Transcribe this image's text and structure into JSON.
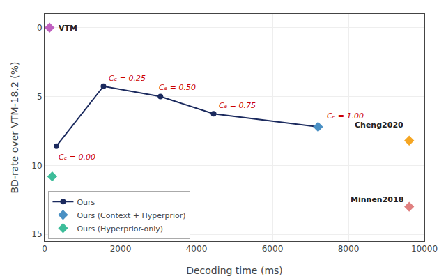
{
  "chart_data": {
    "type": "line",
    "xlabel": "Decoding time (ms)",
    "ylabel": "BD-rate over VTM-18.2 (%)",
    "xlim": [
      0,
      10000
    ],
    "ylim": [
      15.5,
      -1.0
    ],
    "xticks": [
      0,
      2000,
      4000,
      6000,
      8000,
      10000
    ],
    "yticks": [
      0,
      5,
      10,
      15
    ],
    "grid": true,
    "legend": "lower left",
    "series": [
      {
        "name": "Ours",
        "type": "line",
        "color": "#1b2a5e",
        "marker": "circle",
        "line_style": "solid",
        "x": [
          310,
          1550,
          3050,
          4450,
          7200
        ],
        "values": [
          8.6,
          4.25,
          5.0,
          6.25,
          7.2
        ]
      },
      {
        "name": "Ours (Context + Hyperprior)",
        "type": "scatter",
        "color": "#4a90c4",
        "marker": "diamond",
        "x": [
          7200
        ],
        "values": [
          7.2
        ]
      },
      {
        "name": "Ours (Hyperprior-only)",
        "type": "scatter",
        "color": "#3dbd9a",
        "marker": "diamond",
        "x": [
          200
        ],
        "values": [
          10.8
        ]
      },
      {
        "type": "scatter",
        "color": "#c060c0",
        "marker": "diamond",
        "x": [
          130
        ],
        "values": [
          0.0
        ]
      },
      {
        "type": "scatter",
        "color": "#f5a623",
        "marker": "diamond",
        "x": [
          9600
        ],
        "values": [
          8.2
        ]
      },
      {
        "type": "scatter",
        "color": "#e08080",
        "marker": "diamond",
        "x": [
          9600
        ],
        "values": [
          13.0
        ]
      }
    ],
    "annotations": [
      {
        "text": "VTM",
        "x": 130,
        "y": 0.0
      },
      {
        "text": "Cheng2020",
        "x": 9600,
        "y": 8.2
      },
      {
        "text": "Minnen2018",
        "x": 9600,
        "y": 13.0
      },
      {
        "text": "Cₑ = 0.00",
        "x": 310,
        "y": 8.6,
        "color": "#cc0000"
      },
      {
        "text": "Cₑ = 0.25",
        "x": 1550,
        "y": 4.25,
        "color": "#cc0000"
      },
      {
        "text": "Cₑ = 0.50",
        "x": 3050,
        "y": 5.0,
        "color": "#cc0000"
      },
      {
        "text": "Cₑ = 0.75",
        "x": 4450,
        "y": 6.25,
        "color": "#cc0000"
      },
      {
        "text": "Cₑ = 1.00",
        "x": 7200,
        "y": 7.2,
        "color": "#cc0000"
      }
    ]
  }
}
